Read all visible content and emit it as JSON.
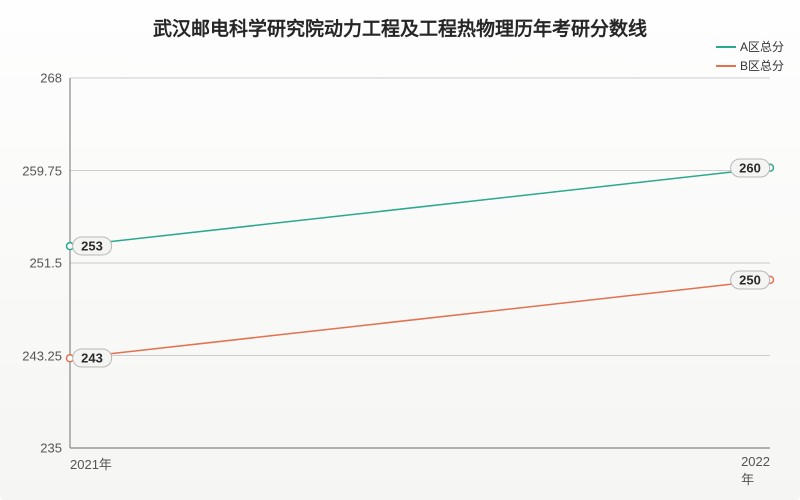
{
  "chart": {
    "type": "line",
    "title": "武汉邮电科学研究院动力工程及工程热物理历年考研分数线",
    "title_fontsize": 19,
    "background_gradient": [
      "#fefefe",
      "#f5f5f3"
    ],
    "plot_background": "none",
    "axis_color": "#888888",
    "grid_color": "#cccccc",
    "text_color": "#555555",
    "x_categories": [
      "2021年",
      "2022年"
    ],
    "ylim": [
      235,
      268
    ],
    "yticks": [
      235,
      243.25,
      251.5,
      259.75,
      268
    ],
    "ytick_labels": [
      "235",
      "243.25",
      "251.5",
      "259.75",
      "268"
    ],
    "series": [
      {
        "name": "A区总分",
        "color": "#2aa98d",
        "line_width": 1.5,
        "values": [
          253,
          260
        ],
        "point_labels": [
          "253",
          "260"
        ]
      },
      {
        "name": "B区总分",
        "color": "#e2714f",
        "line_width": 1.5,
        "values": [
          243,
          250
        ],
        "point_labels": [
          "243",
          "250"
        ]
      }
    ],
    "legend": {
      "position": "top-right",
      "fontsize": 12
    },
    "label_box": {
      "background": "#f4f4f2",
      "border_color": "#b8b8b8",
      "border_radius": 10
    }
  }
}
